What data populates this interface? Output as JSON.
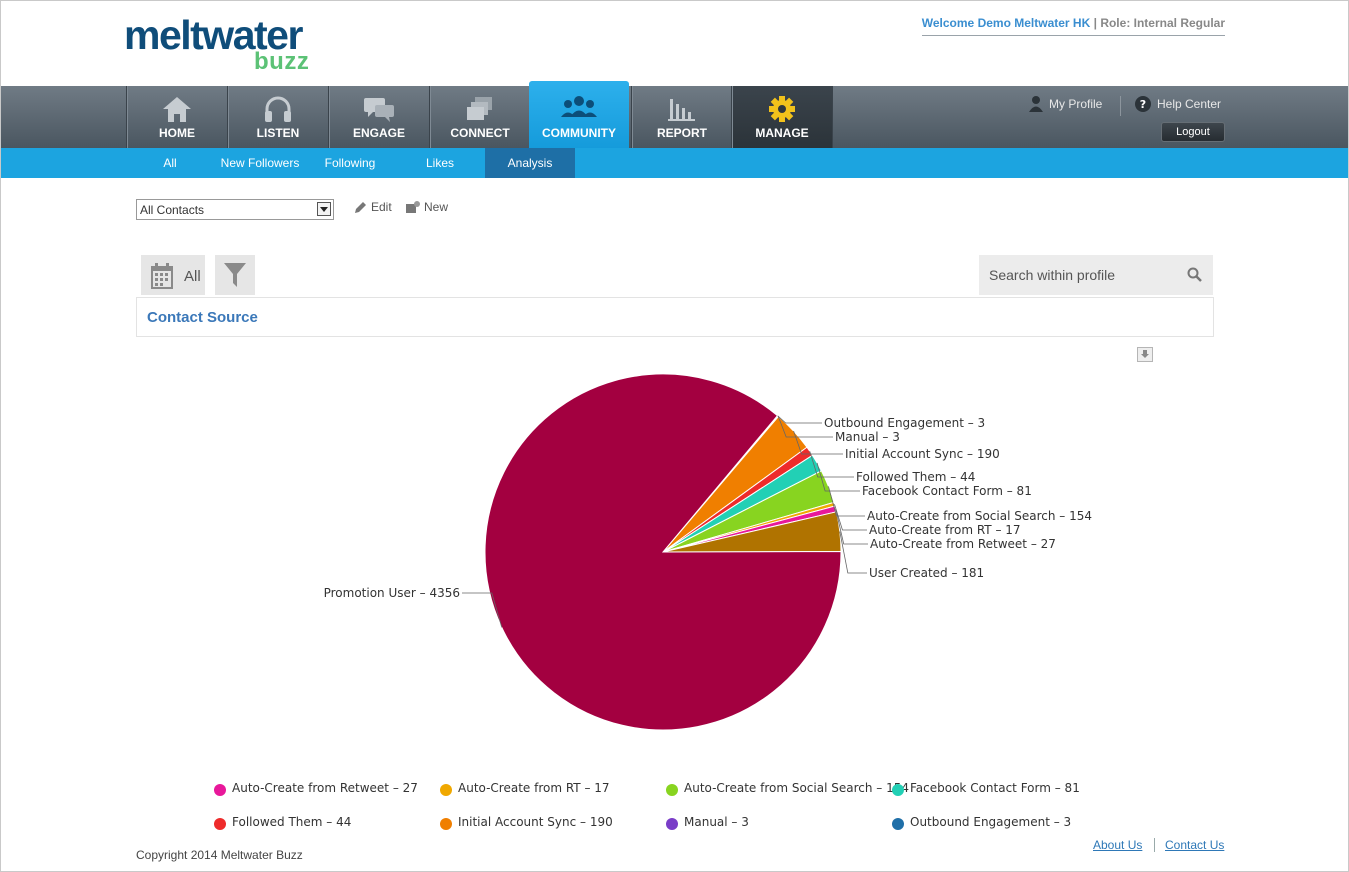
{
  "header": {
    "brand": "meltwater",
    "brand_sub": "buzz",
    "welcome": "Welcome Demo Meltwater HK",
    "separator": "|",
    "role": "Role: Internal Regular"
  },
  "nav": {
    "items": [
      {
        "label": "HOME",
        "icon": "home-icon"
      },
      {
        "label": "LISTEN",
        "icon": "headphones-icon"
      },
      {
        "label": "ENGAGE",
        "icon": "chat-bubbles-icon"
      },
      {
        "label": "CONNECT",
        "icon": "windows-stack-icon"
      },
      {
        "label": "COMMUNITY",
        "icon": "people-icon",
        "active": true
      },
      {
        "label": "REPORT",
        "icon": "bar-chart-icon"
      },
      {
        "label": "MANAGE",
        "icon": "gear-icon"
      }
    ],
    "my_profile": "My Profile",
    "help_center": "Help Center",
    "logout": "Logout"
  },
  "subnav": {
    "items": [
      "All",
      "New Followers",
      "Following",
      "Likes",
      "Analysis"
    ],
    "active": "Analysis"
  },
  "toolbar": {
    "contact_select": "All Contacts",
    "edit": "Edit",
    "new": "New",
    "date_filter": "All",
    "search_placeholder": "Search within profile"
  },
  "panel": {
    "title": "Contact Source"
  },
  "chart_data": {
    "type": "pie",
    "title": "Contact Source",
    "slices": [
      {
        "label": "Outbound Engagement",
        "value": 3,
        "color": "#1f6fa8"
      },
      {
        "label": "Manual",
        "value": 3,
        "color": "#7a3dc8"
      },
      {
        "label": "Initial Account Sync",
        "value": 190,
        "color": "#f07f00"
      },
      {
        "label": "Followed Them",
        "value": 44,
        "color": "#ee2b2b"
      },
      {
        "label": "Facebook Contact Form",
        "value": 81,
        "color": "#22d0b5"
      },
      {
        "label": "Auto-Create from Social Search",
        "value": 154,
        "color": "#88d420"
      },
      {
        "label": "Auto-Create from RT",
        "value": 17,
        "color": "#f0a800"
      },
      {
        "label": "Auto-Create from Retweet",
        "value": 27,
        "color": "#e8189a"
      },
      {
        "label": "User Created",
        "value": 181,
        "color": "#b07300"
      },
      {
        "label": "Promotion User",
        "value": 4356,
        "color": "#a30040"
      }
    ],
    "legend": [
      {
        "label": "Auto-Create from Retweet - 27",
        "color": "#e8189a"
      },
      {
        "label": "Auto-Create from RT - 17",
        "color": "#f0a800"
      },
      {
        "label": "Auto-Create from Social Search - 154",
        "color": "#88d420"
      },
      {
        "label": "Facebook Contact Form - 81",
        "color": "#22d0b5"
      },
      {
        "label": "Followed Them - 44",
        "color": "#ee2b2b"
      },
      {
        "label": "Initial Account Sync - 190",
        "color": "#f07f00"
      },
      {
        "label": "Manual - 3",
        "color": "#7a3dc8"
      },
      {
        "label": "Outbound Engagement - 3",
        "color": "#1f6fa8"
      }
    ],
    "legend_placement": "bottom"
  },
  "footer": {
    "copyright": "Copyright 2014 Meltwater Buzz",
    "about": "About Us",
    "contact": "Contact Us"
  }
}
